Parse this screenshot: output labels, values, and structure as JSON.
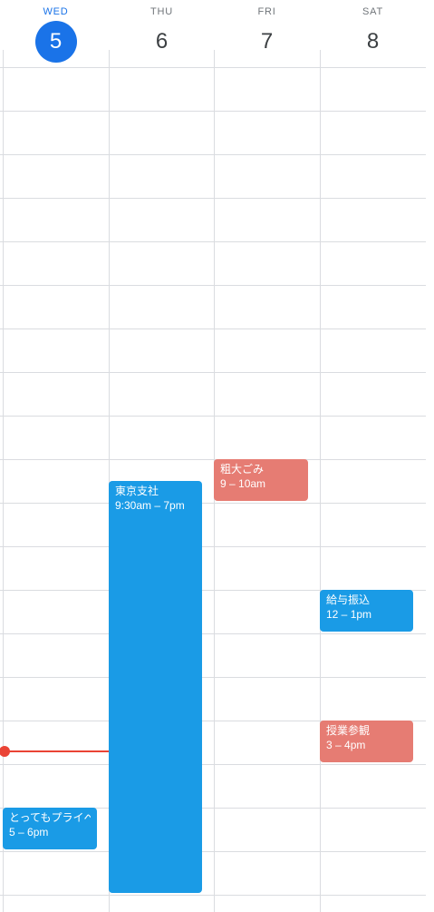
{
  "days": [
    {
      "dow": "WED",
      "dom": "5",
      "today": true
    },
    {
      "dow": "THU",
      "dom": "6",
      "today": false
    },
    {
      "dow": "FRI",
      "dom": "7",
      "today": false
    },
    {
      "dow": "SAT",
      "dom": "8",
      "today": false
    }
  ],
  "events": {
    "wed_private": {
      "title": "とってもプライベ",
      "time": "5 – 6pm",
      "color": "#1a9be6"
    },
    "thu_tokyo": {
      "title": "東京支社",
      "time": "9:30am – 7pm",
      "color": "#1a9be6"
    },
    "fri_garbage": {
      "title": "粗大ごみ",
      "time": "9 – 10am",
      "color": "#e67c73"
    },
    "sat_salary": {
      "title": "給与振込",
      "time": "12 – 1pm",
      "color": "#1a9be6"
    },
    "sat_class": {
      "title": "授業参観",
      "time": "3 – 4pm",
      "color": "#e67c73"
    }
  },
  "colors": {
    "today_accent": "#1a73e8",
    "now_indicator": "#ea4335",
    "grid_line": "#dadce0"
  }
}
